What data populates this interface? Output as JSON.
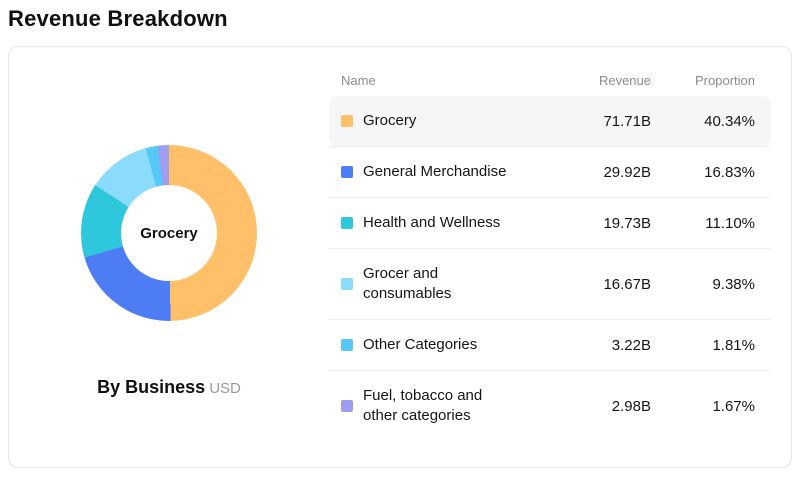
{
  "page": {
    "title": "Revenue Breakdown"
  },
  "card": {
    "center_label": "Grocery",
    "caption": {
      "label": "By Business",
      "unit": "USD"
    }
  },
  "table": {
    "headers": {
      "name": "Name",
      "revenue": "Revenue",
      "proportion": "Proportion"
    },
    "rows": [
      {
        "name": "Grocery",
        "revenue": "71.71B",
        "proportion": "40.34%",
        "color": "#FFC069",
        "highlighted": true
      },
      {
        "name": "General Merchandise",
        "revenue": "29.92B",
        "proportion": "16.83%",
        "color": "#4E7CF5",
        "highlighted": false
      },
      {
        "name": "Health and Wellness",
        "revenue": "19.73B",
        "proportion": "11.10%",
        "color": "#2FC7DB",
        "highlighted": false
      },
      {
        "name": "Grocer and consumables",
        "revenue": "16.67B",
        "proportion": "9.38%",
        "color": "#8BDCFC",
        "highlighted": false
      },
      {
        "name": "Other Categories",
        "revenue": "3.22B",
        "proportion": "1.81%",
        "color": "#55C8F5",
        "highlighted": false
      },
      {
        "name": "Fuel, tobacco and other categories",
        "revenue": "2.98B",
        "proportion": "1.67%",
        "color": "#9D9DF3",
        "highlighted": false
      }
    ]
  },
  "chart_data": {
    "type": "pie",
    "donut": true,
    "title": "By Business",
    "unit": "USD",
    "center_label": "Grocery",
    "categories": [
      "Grocery",
      "General Merchandise",
      "Health and Wellness",
      "Grocer and consumables",
      "Other Categories",
      "Fuel, tobacco and other categories"
    ],
    "revenues_billions": [
      71.71,
      29.92,
      19.73,
      16.67,
      3.22,
      2.98
    ],
    "proportions_percent": [
      40.34,
      16.83,
      11.1,
      9.38,
      1.81,
      1.67
    ],
    "colors": [
      "#FFC069",
      "#4E7CF5",
      "#2FC7DB",
      "#8BDCFC",
      "#55C8F5",
      "#9D9DF3"
    ],
    "legend_position": "right-table",
    "start_angle_deg": 0,
    "direction": "clockwise"
  }
}
